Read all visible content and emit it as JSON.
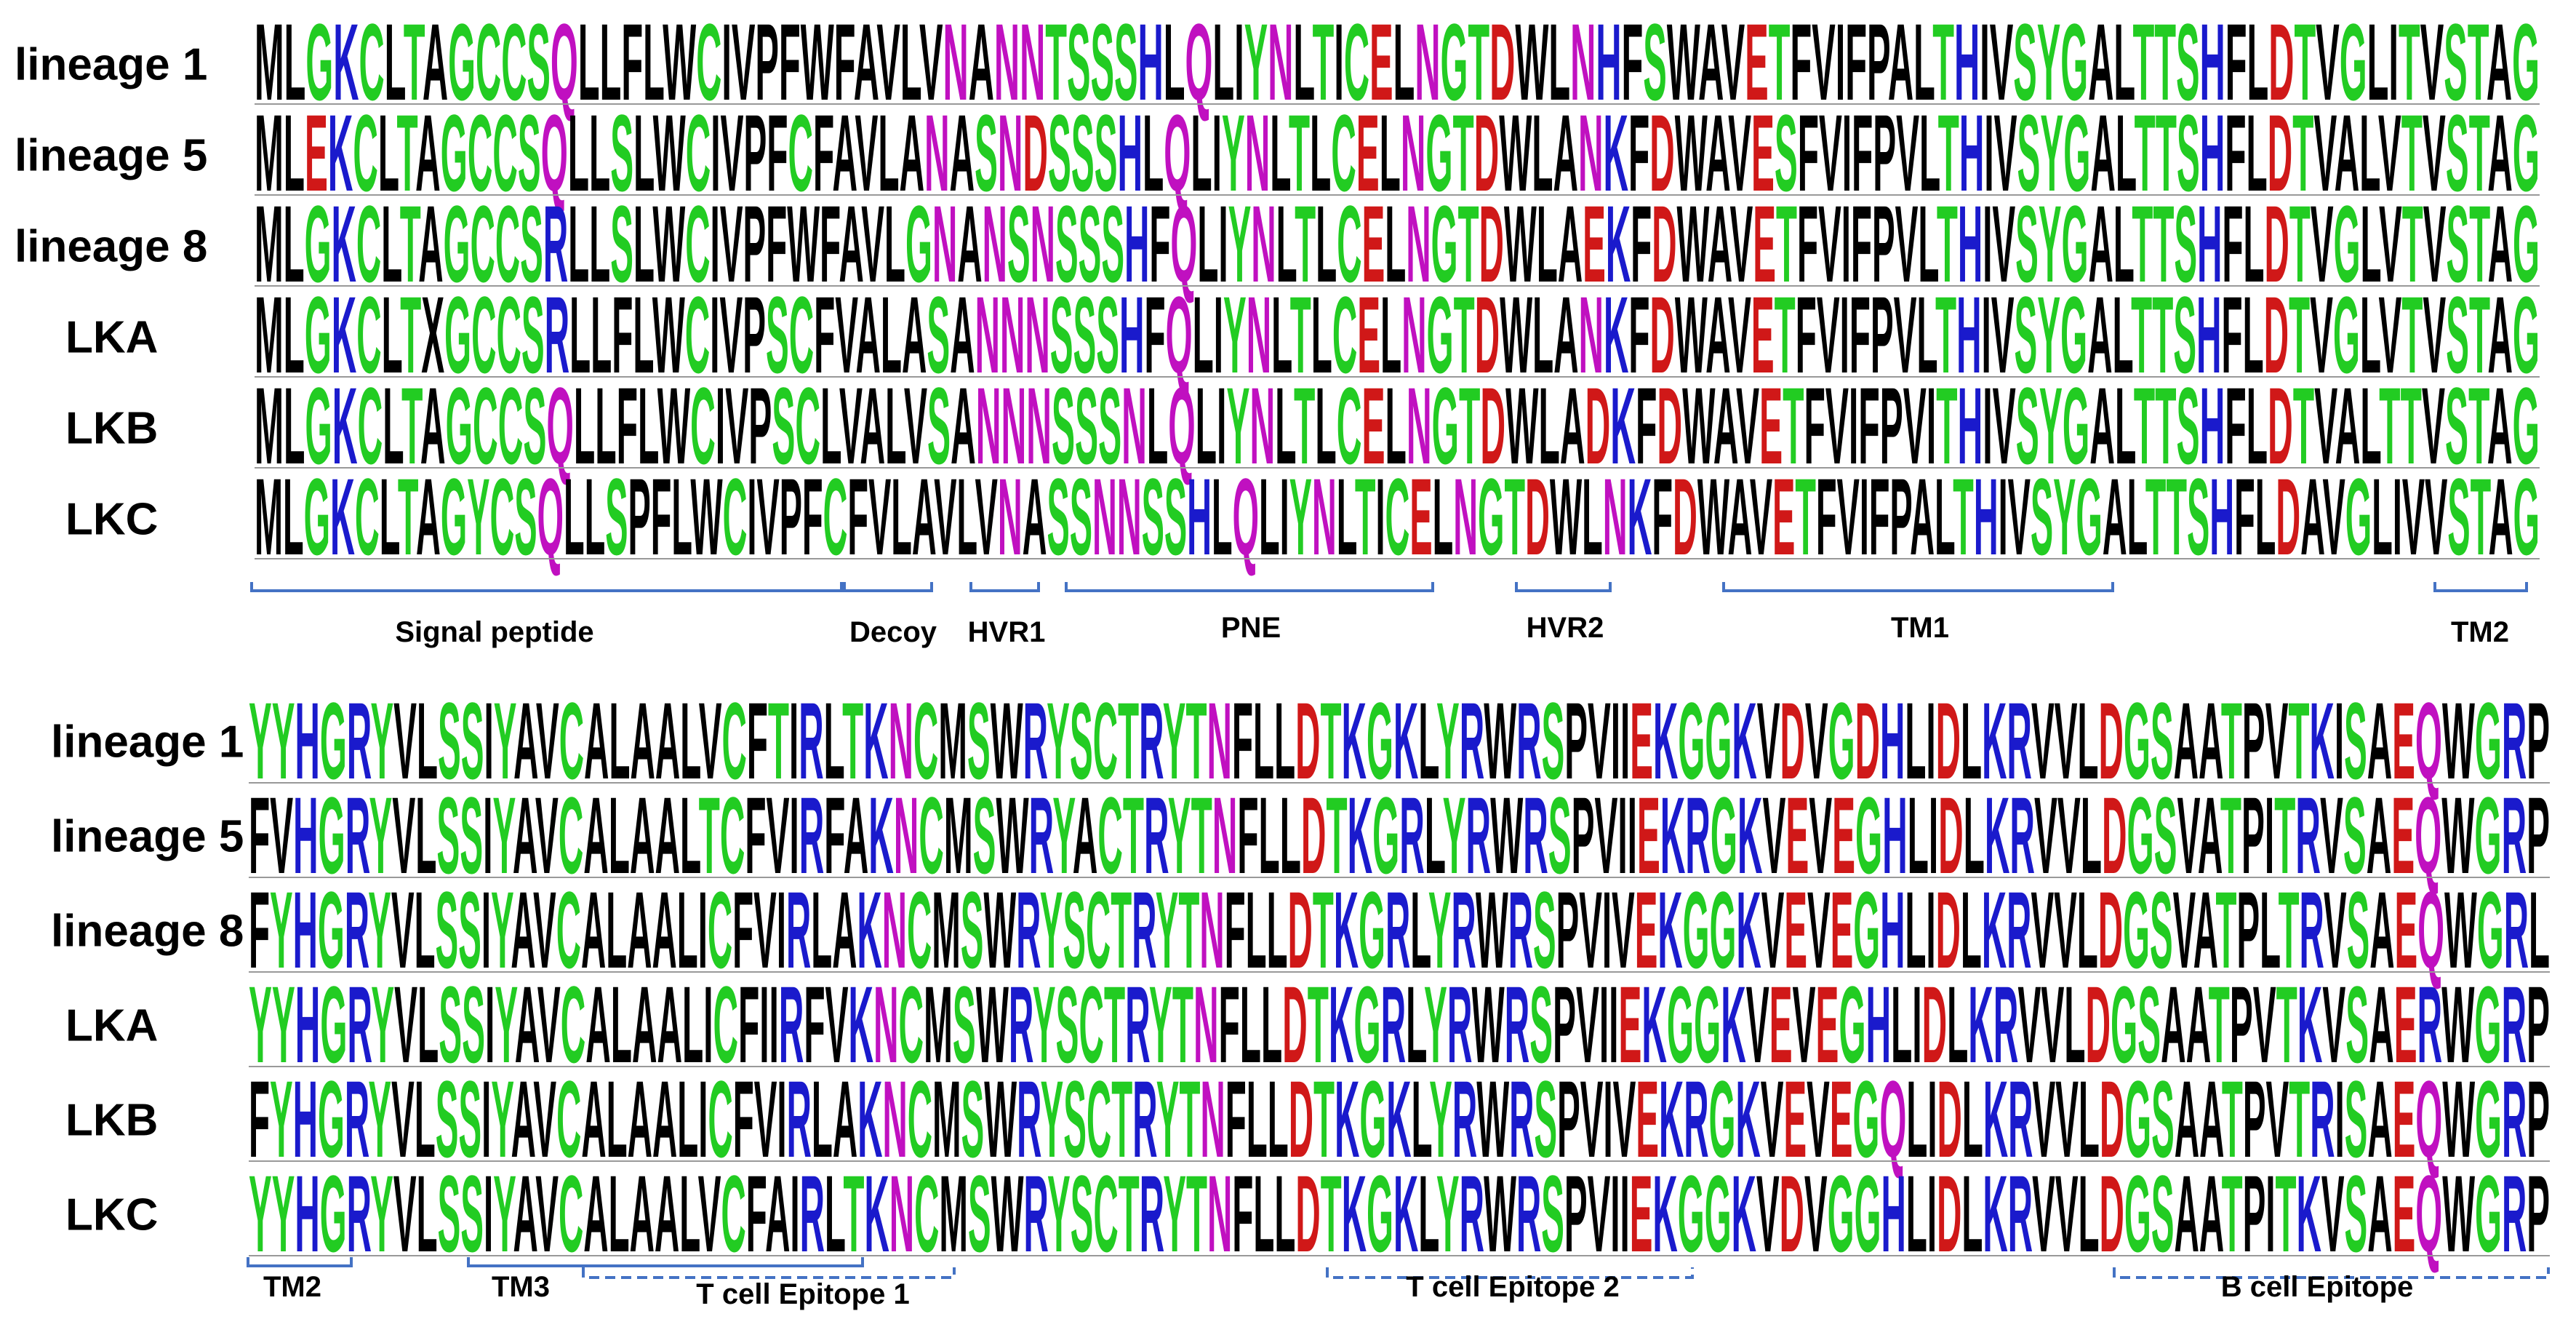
{
  "panels": [
    {
      "rows": [
        {
          "label": "lineage 1",
          "sequence": "MLGKCLTAGCCSQLLFLWCIVPFWFAVLVNANNTSSSHLQLIYNLTICELNGTDWLNHFSWAVETFVIFPALTHIVSYGALTTSHFLDTVGLITVSTAG"
        },
        {
          "label": "lineage 5",
          "sequence": "MLEKCLTAGCCSQLLSLWCIVPFCFAVLANASNDSSSHLQLIYNLTLCELNGTDWLANKFDWAVESFVIFPVLTHIVSYGALTTSHFLDTVALVTVSTAG"
        },
        {
          "label": "lineage 8",
          "sequence": "MLGKCLTAGCCSRLLSLWCIVPFWFAVLGNANSNSSSHFQLIYNLTLCELNGTDWLAEKFDWAVETFVIFPVLTHIVSYGALTTSHFLDTVGLVTVSTAG"
        },
        {
          "label": "LKA",
          "sequence": "MLGKCLTXGCCSRLLFLWCIVPSCFVALASANNNSSSHFQLIYNLTLCELNGTDWLANKFDWAVETFVIFPVLTHIVSYGALTTSHFLDTVGLVTVSTAG"
        },
        {
          "label": "LKB",
          "sequence": "MLGKCLTAGCCSQLLFLWCIVPSCLVALVSANNNSSSNLQLIYNLTLCELNGTDWLADKFDWAVETFVIFPVITHIVSYGALTTSHFLDTVALTTVSTAG"
        },
        {
          "label": "LKC",
          "sequence": "MLGKCLTAGYCSQLLSPFLWCIVPFCFVLAVLVNASSNNSSHLQLIYNLTICELNGTDWLNKFDWAVETFVIFPALTHIVSYGALTTSHFLDAVGLIVVSTAG"
        }
      ],
      "regions": [
        "Signal peptide",
        "Decoy",
        "HVR1",
        "PNE",
        "HVR2",
        "TM1",
        "TM2"
      ]
    },
    {
      "rows": [
        {
          "label": "lineage 1",
          "sequence": "YYHGRYVLSSIYAVCALAALVCFTIRLTKNCMSWRYSCTRYTNFLLDTKGKLYRWRSPVIIEKGGKVDVGDHLIDLKRVVLDGSAATPVTKISAEQWGRP"
        },
        {
          "label": "lineage 5",
          "sequence": "FVHGRYVLSSIYAVCALAALTCFVIRFAKNCMSWRYACTRYTNFLLDTKGRLYRWRSPVIIEKRGKVEVEGHLIDLKRVVLDGSVATPITRVSAEQWGRP"
        },
        {
          "label": "lineage 8",
          "sequence": "FYHGRYVLSSIYAVCALAALICFVIRLAKNCMSWRYSCTRYTNFLLDTKGRLYRWRSPVIVEKGGKVEVEGHLIDLKRVVLDGSVATPLTRVSAEQWGRL"
        },
        {
          "label": "LKA",
          "sequence": "YYHGRYVLSSIYAVCALAALICFIIRFVKNCMSWRYSCTRYTNFLLDTKGRLYRWRSPVIIEKGGKVEVEGHLIDLKRVVLDGSAATPVTKVSAERWGRP"
        },
        {
          "label": "LKB",
          "sequence": "FYHGRYVLSSIYAVCALAALICFVIRLAKNCMSWRYSCTRYTNFLLDTKGKLYRWRSPVIVEKRGKVEVEGQLIDLKRVVLDGSAATPVTRISAEQWGRP"
        },
        {
          "label": "LKC",
          "sequence": "YYHGRYVLSSIYAVCALAALVCFAIRLTKNCMSWRYSCTRYTNFLLDTKGKLYRWRSPVIIEKGGKVDVGGHLIDLKRVVLDGSAATPITKVSAEQWGRP"
        }
      ],
      "regions": [
        "TM2",
        "TM3",
        "T cell Epitope 1",
        "T cell Epitope 2",
        "B cell Epitope"
      ]
    }
  ],
  "color_scheme": [
    {
      "letters": "AVLIPWFMX",
      "color": "#000000"
    },
    {
      "letters": "GSTYC",
      "color": "#22cc22"
    },
    {
      "letters": "KRH",
      "color": "#1a1acc"
    },
    {
      "letters": "DE",
      "color": "#d01818"
    },
    {
      "letters": "NQ",
      "color": "#c010c0"
    }
  ]
}
